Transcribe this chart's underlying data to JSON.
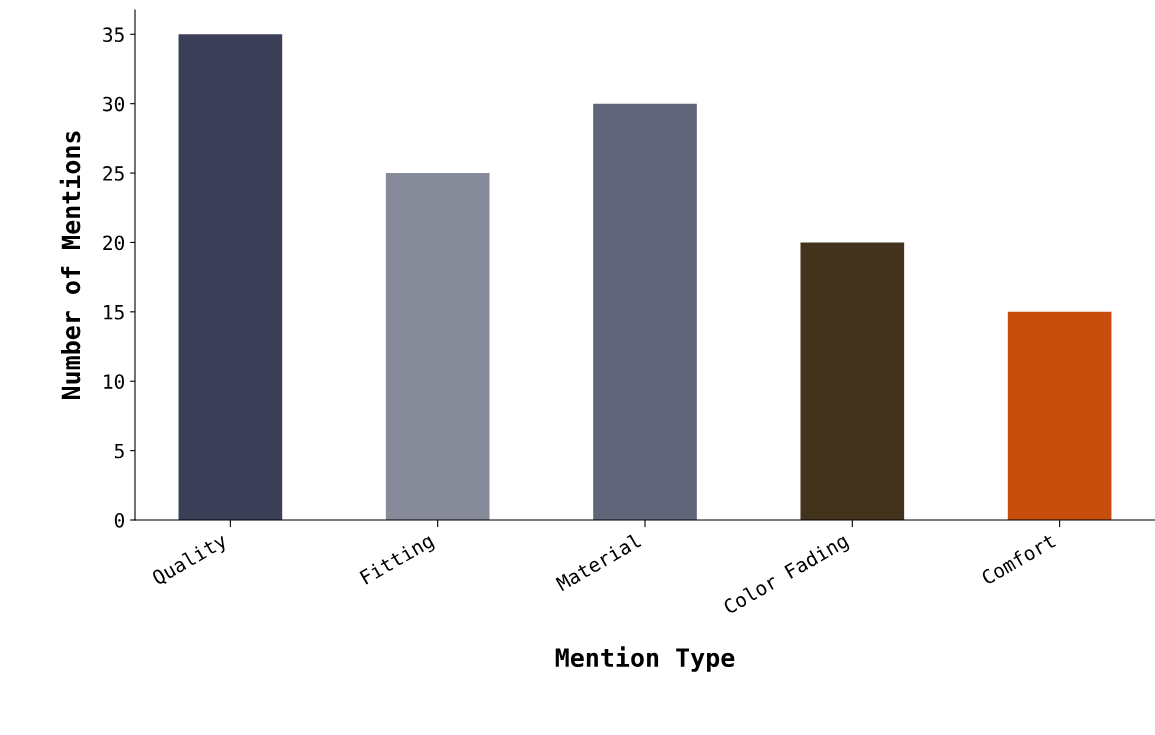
{
  "chart_data": {
    "type": "bar",
    "xlabel": "Mention Type",
    "ylabel": "Number of Mentions",
    "categories": [
      "Quality",
      "Fitting",
      "Material",
      "Color Fading",
      "Comfort"
    ],
    "values": [
      35,
      25,
      30,
      20,
      15
    ],
    "colors": [
      "#3b3f58",
      "#878a99",
      "#606579",
      "#43331d",
      "#c64d0c"
    ],
    "ylim": [
      0,
      36.75
    ],
    "yticks": [
      0,
      5,
      10,
      15,
      20,
      25,
      30,
      35
    ],
    "grid": false
  }
}
